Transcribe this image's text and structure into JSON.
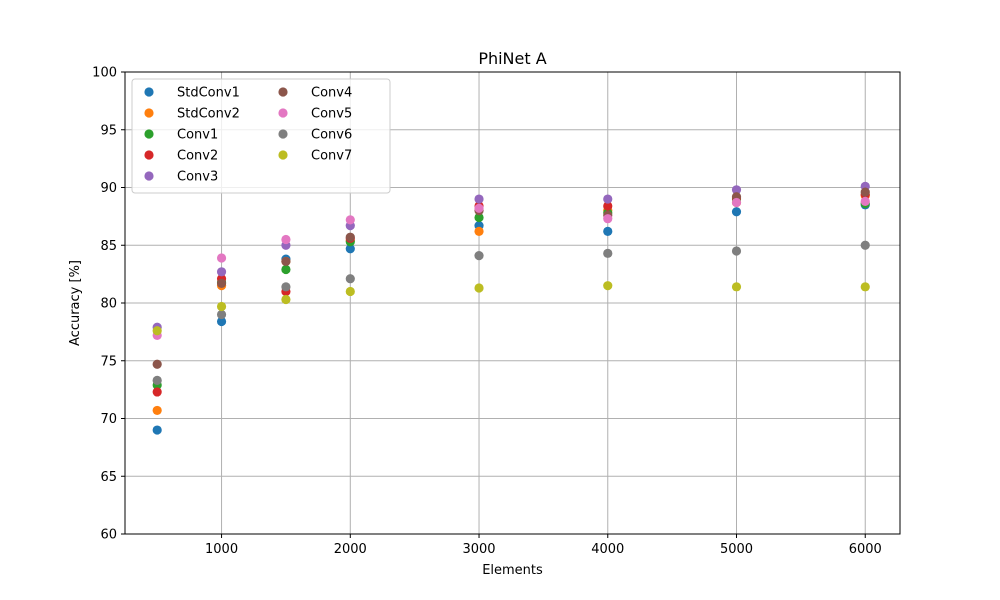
{
  "chart_data": {
    "type": "scatter",
    "title": "PhiNet A",
    "xlabel": "Elements",
    "ylabel": "Accuracy [%]",
    "xlim": [
      250,
      6270
    ],
    "ylim": [
      60,
      100
    ],
    "xticks": [
      1000,
      2000,
      3000,
      4000,
      5000,
      6000
    ],
    "yticks": [
      60,
      65,
      70,
      75,
      80,
      85,
      90,
      95,
      100
    ],
    "grid": true,
    "legend": {
      "location": "upper left",
      "columns": 2
    },
    "x": [
      500,
      1000,
      1500,
      2000,
      3000,
      4000,
      5000,
      6000
    ],
    "series": [
      {
        "name": "StdConv1",
        "color": "#1f77b4",
        "values": [
          69.0,
          78.4,
          83.8,
          84.7,
          86.7,
          86.2,
          87.9,
          88.5
        ]
      },
      {
        "name": "StdConv2",
        "color": "#ff7f0e",
        "values": [
          70.7,
          81.5,
          83.6,
          85.4,
          86.2,
          88.0,
          88.7,
          89.3
        ]
      },
      {
        "name": "Conv1",
        "color": "#2ca02c",
        "values": [
          72.9,
          81.8,
          82.9,
          85.3,
          87.4,
          87.8,
          89.0,
          88.6
        ]
      },
      {
        "name": "Conv2",
        "color": "#d62728",
        "values": [
          72.3,
          82.1,
          81.0,
          85.6,
          88.4,
          88.4,
          89.1,
          89.4
        ]
      },
      {
        "name": "Conv3",
        "color": "#9467bd",
        "values": [
          77.9,
          82.7,
          85.0,
          86.7,
          89.0,
          89.0,
          89.8,
          90.1
        ]
      },
      {
        "name": "Conv4",
        "color": "#8c564b",
        "values": [
          74.7,
          81.7,
          83.6,
          85.7,
          88.0,
          87.6,
          89.2,
          89.6
        ]
      },
      {
        "name": "Conv5",
        "color": "#e377c2",
        "values": [
          77.2,
          83.9,
          85.5,
          87.2,
          88.2,
          87.3,
          88.7,
          88.8
        ]
      },
      {
        "name": "Conv6",
        "color": "#7f7f7f",
        "values": [
          73.3,
          79.0,
          81.4,
          82.1,
          84.1,
          84.3,
          84.5,
          85.0
        ]
      },
      {
        "name": "Conv7",
        "color": "#bcbd22",
        "values": [
          77.6,
          79.7,
          80.3,
          81.0,
          81.3,
          81.5,
          81.4,
          81.4
        ]
      }
    ]
  }
}
